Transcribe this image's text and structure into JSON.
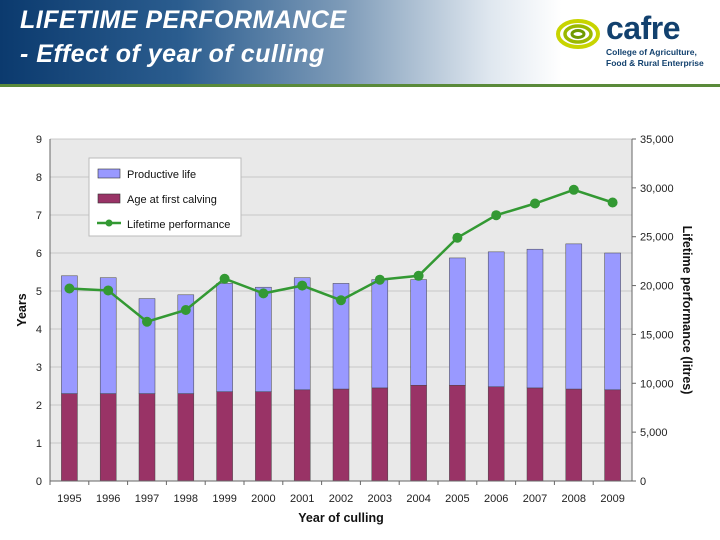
{
  "header": {
    "title_line1": "LIFETIME PERFORMANCE",
    "title_line2": " - Effect of year of culling",
    "logo_name": "cafre",
    "logo_tagline_1": "College of Agriculture,",
    "logo_tagline_2": "Food & Rural Enterprise",
    "bg_color": "#1f4f82"
  },
  "chart_data": {
    "type": "bar",
    "stacked": true,
    "categories": [
      "1995",
      "1996",
      "1997",
      "1998",
      "1999",
      "2000",
      "2001",
      "2002",
      "2003",
      "2004",
      "2005",
      "2006",
      "2007",
      "2008",
      "2009"
    ],
    "series": [
      {
        "name": "Age at first calving",
        "kind": "bar",
        "axis": "left",
        "color": "#993366",
        "values": [
          2.3,
          2.3,
          2.3,
          2.3,
          2.35,
          2.35,
          2.4,
          2.42,
          2.45,
          2.52,
          2.52,
          2.48,
          2.45,
          2.42,
          2.4
        ]
      },
      {
        "name": "Productive life",
        "kind": "bar",
        "axis": "left",
        "color": "#9999ff",
        "values": [
          3.1,
          3.05,
          2.5,
          2.6,
          2.85,
          2.75,
          2.95,
          2.78,
          2.85,
          2.78,
          3.35,
          3.55,
          3.65,
          3.82,
          3.6
        ]
      },
      {
        "name": "Lifetime performance",
        "kind": "line",
        "axis": "right",
        "color": "#339933",
        "values": [
          19700,
          19500,
          16300,
          17500,
          20700,
          19200,
          20000,
          18500,
          20600,
          21000,
          24900,
          27200,
          28400,
          29800,
          28500
        ]
      }
    ],
    "legend": [
      "Productive life",
      "Age at first calving",
      "Lifetime performance"
    ],
    "legend_position": "top-left",
    "xlabel": "Year of culling",
    "ylabel_left": "Years",
    "ylabel_right": "Lifetime performance (litres)",
    "ylim_left": [
      0,
      9
    ],
    "ylim_right": [
      0,
      35000
    ],
    "yticks_left": [
      "0",
      "1",
      "2",
      "3",
      "4",
      "5",
      "6",
      "7",
      "8",
      "9"
    ],
    "yticks_right": [
      "0",
      "5,000",
      "10,000",
      "15,000",
      "20,000",
      "25,000",
      "30,000",
      "35,000"
    ],
    "plot_bg": "#e9e9e9"
  }
}
